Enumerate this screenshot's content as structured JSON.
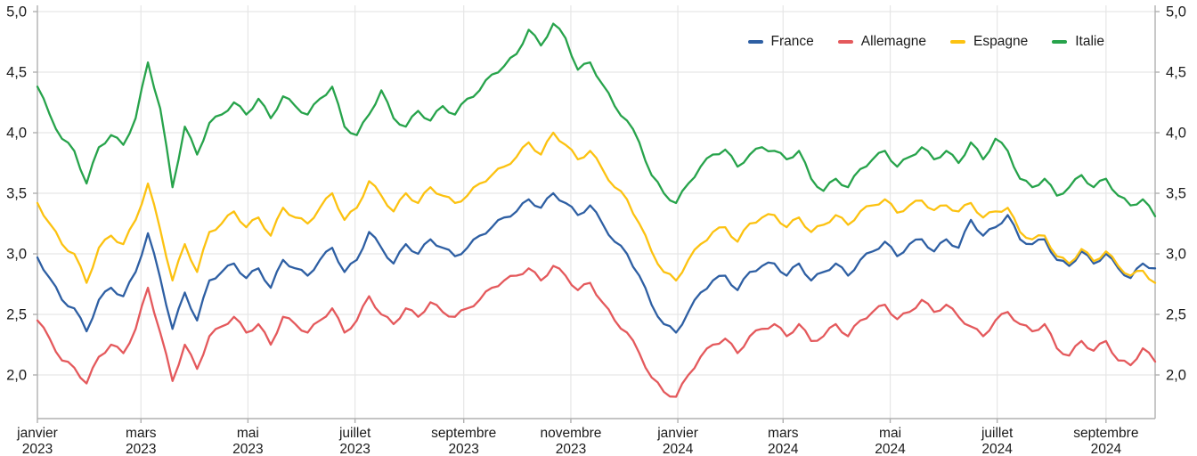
{
  "chart_data": {
    "type": "line",
    "title": "",
    "xlabel": "",
    "ylabel": "",
    "grid": true,
    "legend_position": "top-right",
    "x_unit": "weeks since 2023-01-01 (weekly samples of 10-year yields, %)",
    "weeks_total": 91,
    "ylim": [
      1.64,
      5.05
    ],
    "y_ticks": [
      {
        "value": 2.0,
        "label": "2,0"
      },
      {
        "value": 2.5,
        "label": "2,5"
      },
      {
        "value": 3.0,
        "label": "3,0"
      },
      {
        "value": 3.5,
        "label": "3,5"
      },
      {
        "value": 4.0,
        "label": "4,0"
      },
      {
        "value": 4.5,
        "label": "4,5"
      },
      {
        "value": 5.0,
        "label": "5,0"
      }
    ],
    "x_ticks": [
      {
        "week": 0,
        "month": "janvier",
        "year": "2023"
      },
      {
        "week": 8.43,
        "month": "mars",
        "year": "2023"
      },
      {
        "week": 17.14,
        "month": "mai",
        "year": "2023"
      },
      {
        "week": 25.86,
        "month": "juillet",
        "year": "2023"
      },
      {
        "week": 34.71,
        "month": "septembre",
        "year": "2023"
      },
      {
        "week": 43.43,
        "month": "novembre",
        "year": "2023"
      },
      {
        "week": 52.14,
        "month": "janvier",
        "year": "2024"
      },
      {
        "week": 60.71,
        "month": "mars",
        "year": "2024"
      },
      {
        "week": 69.43,
        "month": "mai",
        "year": "2024"
      },
      {
        "week": 78.14,
        "month": "juillet",
        "year": "2024"
      },
      {
        "week": 87.0,
        "month": "septembre",
        "year": "2024"
      }
    ],
    "series": [
      {
        "name": "France",
        "color": "#2e5fa3",
        "values": [
          2.97,
          2.8,
          2.62,
          2.55,
          2.36,
          2.62,
          2.72,
          2.65,
          2.85,
          3.17,
          2.8,
          2.38,
          2.68,
          2.45,
          2.78,
          2.85,
          2.92,
          2.8,
          2.88,
          2.72,
          2.95,
          2.88,
          2.82,
          2.95,
          3.05,
          2.85,
          2.95,
          3.18,
          3.05,
          2.92,
          3.08,
          3.0,
          3.12,
          3.05,
          2.98,
          3.05,
          3.15,
          3.22,
          3.3,
          3.35,
          3.45,
          3.38,
          3.5,
          3.42,
          3.32,
          3.4,
          3.25,
          3.1,
          3.0,
          2.82,
          2.58,
          2.42,
          2.35,
          2.52,
          2.68,
          2.78,
          2.82,
          2.7,
          2.85,
          2.9,
          2.92,
          2.82,
          2.92,
          2.78,
          2.85,
          2.92,
          2.82,
          2.95,
          3.02,
          3.1,
          2.98,
          3.08,
          3.12,
          3.02,
          3.12,
          3.05,
          3.28,
          3.15,
          3.22,
          3.32,
          3.12,
          3.08,
          3.12,
          2.95,
          2.9,
          3.02,
          2.92,
          3.0,
          2.88,
          2.8,
          2.92,
          2.88
        ]
      },
      {
        "name": "Allemagne",
        "color": "#e4595c",
        "values": [
          2.45,
          2.3,
          2.12,
          2.06,
          1.93,
          2.15,
          2.25,
          2.18,
          2.38,
          2.72,
          2.35,
          1.95,
          2.25,
          2.05,
          2.32,
          2.4,
          2.48,
          2.35,
          2.42,
          2.25,
          2.48,
          2.42,
          2.35,
          2.45,
          2.55,
          2.35,
          2.45,
          2.65,
          2.5,
          2.42,
          2.55,
          2.48,
          2.6,
          2.52,
          2.48,
          2.55,
          2.62,
          2.72,
          2.78,
          2.82,
          2.88,
          2.78,
          2.9,
          2.82,
          2.7,
          2.76,
          2.6,
          2.45,
          2.35,
          2.18,
          1.98,
          1.86,
          1.82,
          2.0,
          2.15,
          2.25,
          2.3,
          2.18,
          2.32,
          2.38,
          2.42,
          2.32,
          2.42,
          2.28,
          2.32,
          2.42,
          2.32,
          2.45,
          2.52,
          2.58,
          2.46,
          2.52,
          2.62,
          2.52,
          2.58,
          2.48,
          2.4,
          2.32,
          2.45,
          2.52,
          2.42,
          2.36,
          2.42,
          2.22,
          2.16,
          2.28,
          2.2,
          2.28,
          2.12,
          2.08,
          2.22,
          2.11
        ]
      },
      {
        "name": "Espagne",
        "color": "#fcc211",
        "values": [
          3.42,
          3.25,
          3.08,
          3.0,
          2.76,
          3.05,
          3.15,
          3.08,
          3.28,
          3.58,
          3.2,
          2.78,
          3.08,
          2.85,
          3.18,
          3.25,
          3.35,
          3.22,
          3.3,
          3.15,
          3.38,
          3.3,
          3.25,
          3.38,
          3.5,
          3.28,
          3.38,
          3.6,
          3.48,
          3.35,
          3.5,
          3.42,
          3.55,
          3.48,
          3.42,
          3.48,
          3.58,
          3.65,
          3.72,
          3.8,
          3.92,
          3.82,
          4.0,
          3.9,
          3.78,
          3.85,
          3.7,
          3.55,
          3.45,
          3.25,
          3.02,
          2.85,
          2.78,
          2.95,
          3.08,
          3.18,
          3.22,
          3.1,
          3.25,
          3.3,
          3.32,
          3.22,
          3.3,
          3.18,
          3.24,
          3.32,
          3.24,
          3.35,
          3.4,
          3.45,
          3.34,
          3.4,
          3.44,
          3.36,
          3.4,
          3.35,
          3.42,
          3.3,
          3.35,
          3.38,
          3.18,
          3.12,
          3.15,
          2.98,
          2.92,
          3.04,
          2.94,
          3.02,
          2.9,
          2.82,
          2.86,
          2.76
        ]
      },
      {
        "name": "Italie",
        "color": "#27a34b",
        "values": [
          4.38,
          4.15,
          3.95,
          3.85,
          3.58,
          3.88,
          3.98,
          3.9,
          4.12,
          4.58,
          4.2,
          3.55,
          4.05,
          3.82,
          4.08,
          4.15,
          4.25,
          4.15,
          4.28,
          4.12,
          4.3,
          4.22,
          4.15,
          4.28,
          4.38,
          4.05,
          3.98,
          4.15,
          4.35,
          4.12,
          4.05,
          4.18,
          4.1,
          4.22,
          4.15,
          4.28,
          4.35,
          4.48,
          4.55,
          4.65,
          4.85,
          4.72,
          4.9,
          4.78,
          4.52,
          4.58,
          4.4,
          4.22,
          4.1,
          3.92,
          3.65,
          3.5,
          3.42,
          3.58,
          3.72,
          3.82,
          3.86,
          3.72,
          3.82,
          3.88,
          3.85,
          3.78,
          3.85,
          3.62,
          3.52,
          3.62,
          3.55,
          3.7,
          3.78,
          3.85,
          3.72,
          3.8,
          3.88,
          3.78,
          3.85,
          3.75,
          3.92,
          3.78,
          3.95,
          3.85,
          3.62,
          3.55,
          3.62,
          3.48,
          3.55,
          3.65,
          3.55,
          3.62,
          3.48,
          3.4,
          3.45,
          3.31
        ]
      }
    ]
  },
  "colors": {
    "background": "#ffffff",
    "grid": "#e6e6e6",
    "axis": "#b0b0b0",
    "text": "#1a1a1a"
  }
}
